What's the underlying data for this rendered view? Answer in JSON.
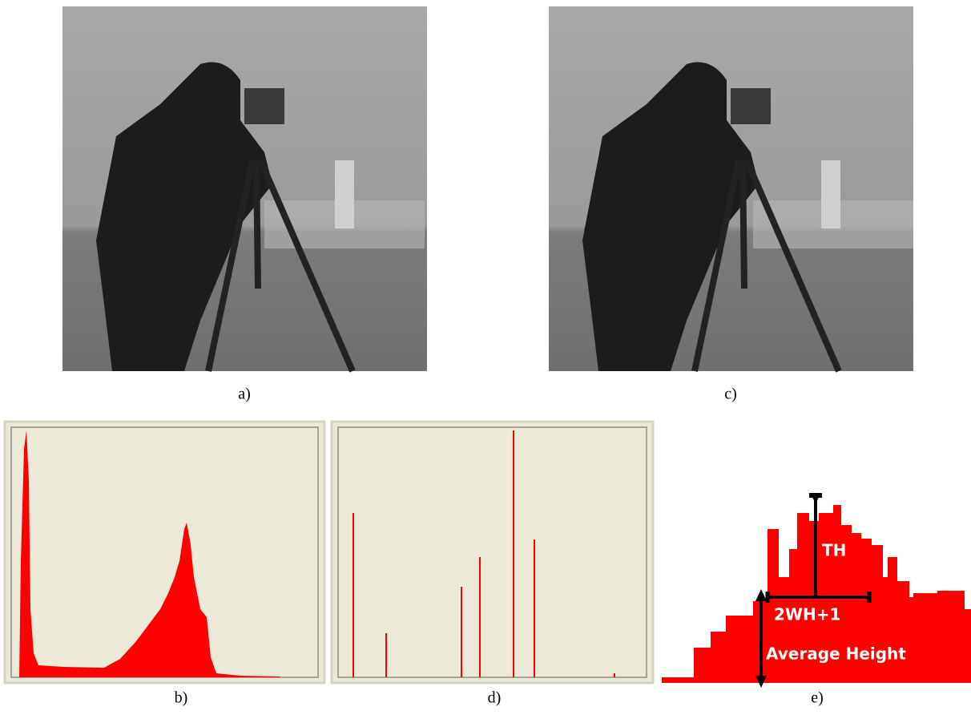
{
  "figure": {
    "panels": {
      "a": "a)",
      "b": "b)",
      "c": "c)",
      "d": "d)",
      "e": "e)"
    },
    "diagram": {
      "top_label": "TH",
      "width_label": "2WH+1",
      "bottom_label": "Average Height"
    }
  }
}
